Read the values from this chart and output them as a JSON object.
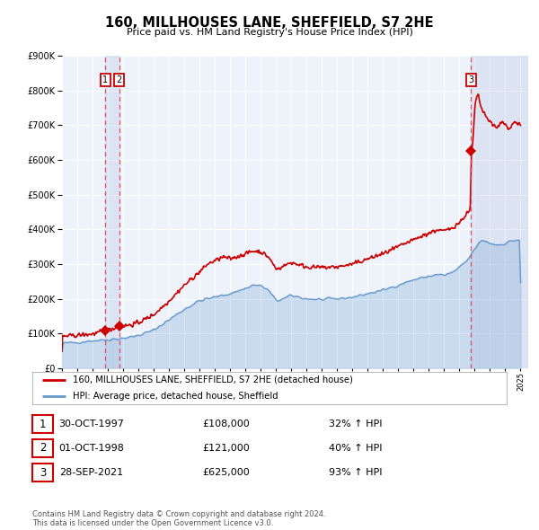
{
  "title": "160, MILLHOUSES LANE, SHEFFIELD, S7 2HE",
  "subtitle": "Price paid vs. HM Land Registry's House Price Index (HPI)",
  "ylim": [
    0,
    900000
  ],
  "xlim_start": 1995.0,
  "xlim_end": 2025.5,
  "background_color": "#ffffff",
  "plot_bg_color": "#eef2fb",
  "grid_color": "#ffffff",
  "sale_color": "#cc0000",
  "hpi_color": "#6699cc",
  "dashed_line_color": "#dd4444",
  "sale_points": [
    {
      "year": 1997.83,
      "price": 108000,
      "label": "1"
    },
    {
      "year": 1998.75,
      "price": 121000,
      "label": "2"
    },
    {
      "year": 2021.74,
      "price": 625000,
      "label": "3"
    }
  ],
  "legend_sale_label": "160, MILLHOUSES LANE, SHEFFIELD, S7 2HE (detached house)",
  "legend_hpi_label": "HPI: Average price, detached house, Sheffield",
  "table_rows": [
    {
      "num": "1",
      "date": "30-OCT-1997",
      "price": "£108,000",
      "change": "32% ↑ HPI"
    },
    {
      "num": "2",
      "date": "01-OCT-1998",
      "price": "£121,000",
      "change": "40% ↑ HPI"
    },
    {
      "num": "3",
      "date": "28-SEP-2021",
      "price": "£625,000",
      "change": "93% ↑ HPI"
    }
  ],
  "footer": "Contains HM Land Registry data © Crown copyright and database right 2024.\nThis data is licensed under the Open Government Licence v3.0.",
  "vline_years": [
    1997.83,
    1998.75,
    2021.74
  ]
}
